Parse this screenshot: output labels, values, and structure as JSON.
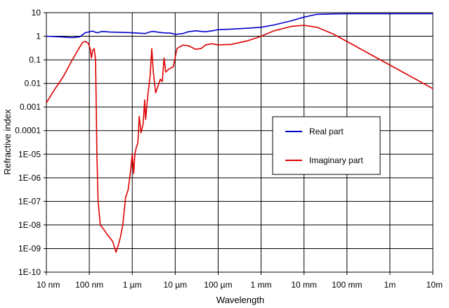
{
  "chart_data": {
    "type": "line",
    "title": "",
    "xlabel": "Wavelength",
    "ylabel": "Refractive index",
    "x_scale": "log",
    "y_scale": "log",
    "x_unit": "m",
    "xlim": [
      1e-08,
      10
    ],
    "ylim": [
      1e-10,
      10
    ],
    "grid": true,
    "legend_position": "right-center",
    "x_ticks": [
      {
        "value": 1e-08,
        "label": "10 nm"
      },
      {
        "value": 1e-07,
        "label": "100 nm"
      },
      {
        "value": 1e-06,
        "label": "1 µm"
      },
      {
        "value": 1e-05,
        "label": "10 µm"
      },
      {
        "value": 0.0001,
        "label": "100 µm"
      },
      {
        "value": 0.001,
        "label": "1 mm"
      },
      {
        "value": 0.01,
        "label": "10 mm"
      },
      {
        "value": 0.1,
        "label": "100 mm"
      },
      {
        "value": 1,
        "label": "1m"
      },
      {
        "value": 10,
        "label": "10m"
      }
    ],
    "y_ticks": [
      {
        "value": 10,
        "label": "10"
      },
      {
        "value": 1,
        "label": "1"
      },
      {
        "value": 0.1,
        "label": "0.1"
      },
      {
        "value": 0.01,
        "label": "0.01"
      },
      {
        "value": 0.001,
        "label": "0.001"
      },
      {
        "value": 0.0001,
        "label": "0.0001"
      },
      {
        "value": 1e-05,
        "label": "1E-05"
      },
      {
        "value": 1e-06,
        "label": "1E-06"
      },
      {
        "value": 1e-07,
        "label": "1E-07"
      },
      {
        "value": 1e-08,
        "label": "1E-08"
      },
      {
        "value": 1e-09,
        "label": "1E-09"
      },
      {
        "value": 1e-10,
        "label": "1E-10"
      }
    ],
    "series": [
      {
        "name": "Real part",
        "color": "#0000cc",
        "points": [
          [
            1e-08,
            1.0
          ],
          [
            2e-08,
            0.95
          ],
          [
            4e-08,
            0.87
          ],
          [
            6e-08,
            0.95
          ],
          [
            8e-08,
            1.4
          ],
          [
            1.2e-07,
            1.65
          ],
          [
            1.5e-07,
            1.4
          ],
          [
            2e-07,
            1.6
          ],
          [
            3e-07,
            1.5
          ],
          [
            6e-07,
            1.45
          ],
          [
            1e-06,
            1.4
          ],
          [
            2e-06,
            1.3
          ],
          [
            2.5e-06,
            1.5
          ],
          [
            3e-06,
            1.6
          ],
          [
            5e-06,
            1.4
          ],
          [
            8e-06,
            1.35
          ],
          [
            1e-05,
            1.2
          ],
          [
            1.5e-05,
            1.3
          ],
          [
            2e-05,
            1.55
          ],
          [
            3e-05,
            1.7
          ],
          [
            5e-05,
            1.55
          ],
          [
            8e-05,
            1.75
          ],
          [
            0.0001,
            1.9
          ],
          [
            0.0002,
            2.0
          ],
          [
            0.0005,
            2.2
          ],
          [
            0.001,
            2.4
          ],
          [
            0.002,
            3.0
          ],
          [
            0.005,
            4.5
          ],
          [
            0.01,
            6.5
          ],
          [
            0.02,
            8.5
          ],
          [
            0.05,
            8.9
          ],
          [
            0.1,
            9.0
          ],
          [
            1,
            9.0
          ],
          [
            10,
            9.0
          ]
        ]
      },
      {
        "name": "Imaginary part",
        "color": "#dd0000",
        "points": [
          [
            1e-08,
            0.0015
          ],
          [
            1.5e-08,
            0.005
          ],
          [
            2.5e-08,
            0.02
          ],
          [
            4e-08,
            0.1
          ],
          [
            6e-08,
            0.35
          ],
          [
            7e-08,
            0.55
          ],
          [
            8e-08,
            0.6
          ],
          [
            9.5e-08,
            0.5
          ],
          [
            1.05e-07,
            0.3
          ],
          [
            1.12e-07,
            0.12
          ],
          [
            1.2e-07,
            0.25
          ],
          [
            1.3e-07,
            0.3
          ],
          [
            1.4e-07,
            0.1
          ],
          [
            1.45e-07,
            0.001
          ],
          [
            1.5e-07,
            1e-05
          ],
          [
            1.6e-07,
            1e-07
          ],
          [
            1.8e-07,
            1e-08
          ],
          [
            2.1e-07,
            7e-09
          ],
          [
            2.6e-07,
            4e-09
          ],
          [
            3.5e-07,
            2e-09
          ],
          [
            4.2e-07,
            7e-10
          ],
          [
            4.8e-07,
            1.5e-09
          ],
          [
            5.3e-07,
            3e-09
          ],
          [
            6e-07,
            1e-08
          ],
          [
            7e-07,
            1.5e-07
          ],
          [
            8e-07,
            3e-07
          ],
          [
            9e-07,
            1.5e-06
          ],
          [
            1e-06,
            1e-05
          ],
          [
            1.08e-06,
            1.5e-06
          ],
          [
            1.15e-06,
            1e-05
          ],
          [
            1.25e-06,
            2e-05
          ],
          [
            1.35e-06,
            3e-05
          ],
          [
            1.45e-06,
            0.0004
          ],
          [
            1.6e-06,
            8e-05
          ],
          [
            1.8e-06,
            0.0002
          ],
          [
            1.95e-06,
            0.002
          ],
          [
            2.05e-06,
            0.0003
          ],
          [
            2.3e-06,
            0.003
          ],
          [
            2.6e-06,
            0.02
          ],
          [
            2.85e-06,
            0.3
          ],
          [
            3.1e-06,
            0.03
          ],
          [
            3.5e-06,
            0.004
          ],
          [
            4e-06,
            0.008
          ],
          [
            4.5e-06,
            0.015
          ],
          [
            5e-06,
            0.012
          ],
          [
            5.5e-06,
            0.12
          ],
          [
            6e-06,
            0.03
          ],
          [
            7e-06,
            0.04
          ],
          [
            9e-06,
            0.05
          ],
          [
            1.1e-05,
            0.3
          ],
          [
            1.5e-05,
            0.42
          ],
          [
            2e-05,
            0.4
          ],
          [
            3e-05,
            0.28
          ],
          [
            4e-05,
            0.3
          ],
          [
            5e-05,
            0.42
          ],
          [
            7e-05,
            0.48
          ],
          [
            0.0001,
            0.43
          ],
          [
            0.0002,
            0.45
          ],
          [
            0.0005,
            0.65
          ],
          [
            0.001,
            1.0
          ],
          [
            0.002,
            1.7
          ],
          [
            0.005,
            2.6
          ],
          [
            0.01,
            2.9
          ],
          [
            0.02,
            2.4
          ],
          [
            0.05,
            1.2
          ],
          [
            0.1,
            0.6
          ],
          [
            1,
            0.06
          ],
          [
            10,
            0.006
          ]
        ]
      }
    ]
  }
}
